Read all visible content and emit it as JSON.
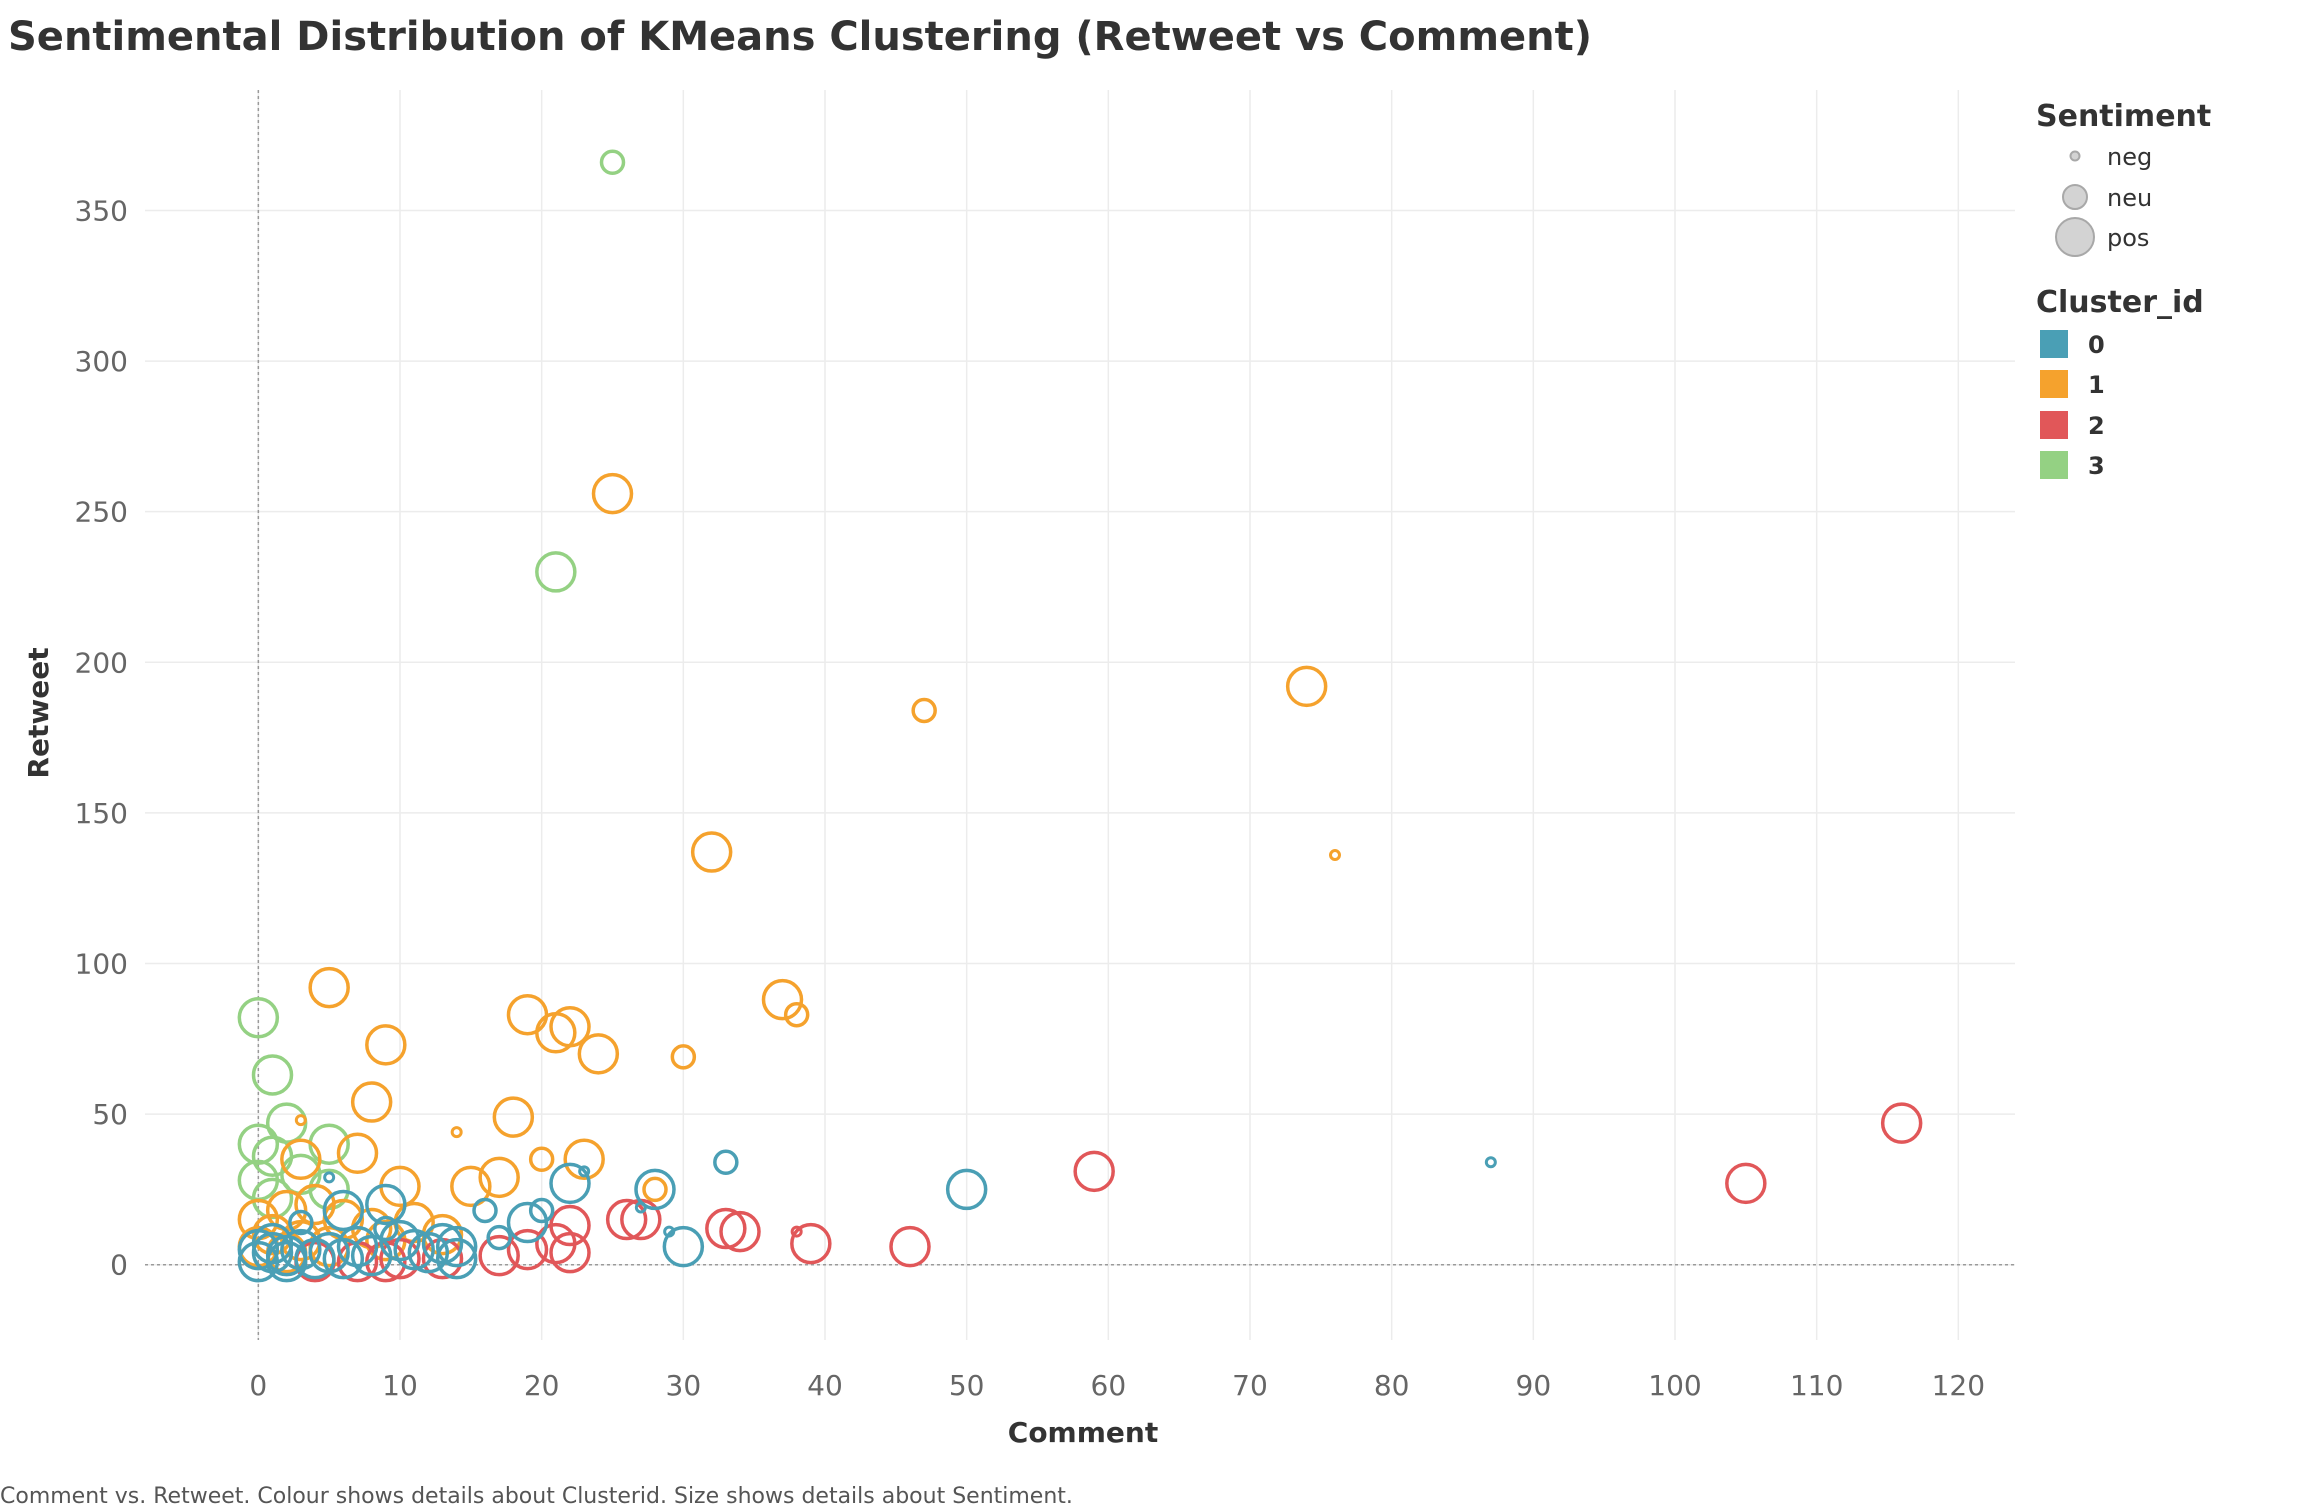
{
  "caption": "Comment vs. Retweet.  Colour shows details about Clusterid.  Size shows details about Sentiment.",
  "chart_data": {
    "type": "scatter",
    "title": "Sentimental Distribution of KMeans Clustering (Retweet vs Comment)",
    "xlabel": "Comment",
    "ylabel": "Retweet",
    "xlim": [
      -8,
      124
    ],
    "ylim": [
      -25,
      390
    ],
    "xticks": [
      0,
      10,
      20,
      30,
      40,
      50,
      60,
      70,
      80,
      90,
      100,
      110,
      120
    ],
    "yticks": [
      0,
      50,
      100,
      150,
      200,
      250,
      300,
      350
    ],
    "grid": true,
    "legend_position": "right",
    "size_legend": {
      "title": "Sentiment",
      "items": [
        {
          "label": "neg",
          "size": "small"
        },
        {
          "label": "neu",
          "size": "medium"
        },
        {
          "label": "pos",
          "size": "large"
        }
      ]
    },
    "color_legend": {
      "title": "Cluster_id",
      "items": [
        {
          "label": "0",
          "color": "#4a9fb5"
        },
        {
          "label": "1",
          "color": "#f5a22d"
        },
        {
          "label": "2",
          "color": "#e15759"
        },
        {
          "label": "3",
          "color": "#94d183"
        }
      ]
    },
    "points": [
      {
        "x": 25,
        "y": 366,
        "cluster": "3",
        "sentiment": "neu"
      },
      {
        "x": 21,
        "y": 230,
        "cluster": "3",
        "sentiment": "pos"
      },
      {
        "x": 0,
        "y": 82,
        "cluster": "3",
        "sentiment": "pos"
      },
      {
        "x": 1,
        "y": 63,
        "cluster": "3",
        "sentiment": "pos"
      },
      {
        "x": 2,
        "y": 47,
        "cluster": "3",
        "sentiment": "pos"
      },
      {
        "x": 0,
        "y": 40,
        "cluster": "3",
        "sentiment": "pos"
      },
      {
        "x": 1,
        "y": 36,
        "cluster": "3",
        "sentiment": "pos"
      },
      {
        "x": 5,
        "y": 40,
        "cluster": "3",
        "sentiment": "pos"
      },
      {
        "x": 0,
        "y": 28,
        "cluster": "3",
        "sentiment": "pos"
      },
      {
        "x": 3,
        "y": 30,
        "cluster": "3",
        "sentiment": "pos"
      },
      {
        "x": 1,
        "y": 22,
        "cluster": "3",
        "sentiment": "pos"
      },
      {
        "x": 5,
        "y": 25,
        "cluster": "3",
        "sentiment": "pos"
      },
      {
        "x": 25,
        "y": 256,
        "cluster": "1",
        "sentiment": "pos"
      },
      {
        "x": 74,
        "y": 192,
        "cluster": "1",
        "sentiment": "pos"
      },
      {
        "x": 47,
        "y": 184,
        "cluster": "1",
        "sentiment": "neu"
      },
      {
        "x": 32,
        "y": 137,
        "cluster": "1",
        "sentiment": "pos"
      },
      {
        "x": 76,
        "y": 136,
        "cluster": "1",
        "sentiment": "neg"
      },
      {
        "x": 5,
        "y": 92,
        "cluster": "1",
        "sentiment": "pos"
      },
      {
        "x": 37,
        "y": 88,
        "cluster": "1",
        "sentiment": "pos"
      },
      {
        "x": 19,
        "y": 83,
        "cluster": "1",
        "sentiment": "pos"
      },
      {
        "x": 38,
        "y": 83,
        "cluster": "1",
        "sentiment": "neu"
      },
      {
        "x": 22,
        "y": 79,
        "cluster": "1",
        "sentiment": "pos"
      },
      {
        "x": 21,
        "y": 77,
        "cluster": "1",
        "sentiment": "pos"
      },
      {
        "x": 9,
        "y": 73,
        "cluster": "1",
        "sentiment": "pos"
      },
      {
        "x": 24,
        "y": 70,
        "cluster": "1",
        "sentiment": "pos"
      },
      {
        "x": 30,
        "y": 69,
        "cluster": "1",
        "sentiment": "neu"
      },
      {
        "x": 8,
        "y": 54,
        "cluster": "1",
        "sentiment": "pos"
      },
      {
        "x": 18,
        "y": 49,
        "cluster": "1",
        "sentiment": "pos"
      },
      {
        "x": 14,
        "y": 44,
        "cluster": "1",
        "sentiment": "neg"
      },
      {
        "x": 3,
        "y": 48,
        "cluster": "1",
        "sentiment": "neg"
      },
      {
        "x": 7,
        "y": 37,
        "cluster": "1",
        "sentiment": "pos"
      },
      {
        "x": 3,
        "y": 35,
        "cluster": "1",
        "sentiment": "pos"
      },
      {
        "x": 20,
        "y": 35,
        "cluster": "1",
        "sentiment": "neu"
      },
      {
        "x": 23,
        "y": 35,
        "cluster": "1",
        "sentiment": "pos"
      },
      {
        "x": 17,
        "y": 29,
        "cluster": "1",
        "sentiment": "pos"
      },
      {
        "x": 10,
        "y": 26,
        "cluster": "1",
        "sentiment": "pos"
      },
      {
        "x": 15,
        "y": 26,
        "cluster": "1",
        "sentiment": "pos"
      },
      {
        "x": 28,
        "y": 25,
        "cluster": "1",
        "sentiment": "neu"
      },
      {
        "x": 2,
        "y": 18,
        "cluster": "1",
        "sentiment": "pos"
      },
      {
        "x": 0,
        "y": 15,
        "cluster": "1",
        "sentiment": "pos"
      },
      {
        "x": 4,
        "y": 20,
        "cluster": "1",
        "sentiment": "pos"
      },
      {
        "x": 6,
        "y": 15,
        "cluster": "1",
        "sentiment": "pos"
      },
      {
        "x": 1,
        "y": 10,
        "cluster": "1",
        "sentiment": "pos"
      },
      {
        "x": 3,
        "y": 8,
        "cluster": "1",
        "sentiment": "pos"
      },
      {
        "x": 8,
        "y": 12,
        "cluster": "1",
        "sentiment": "pos"
      },
      {
        "x": 11,
        "y": 14,
        "cluster": "1",
        "sentiment": "pos"
      },
      {
        "x": 13,
        "y": 10,
        "cluster": "1",
        "sentiment": "pos"
      },
      {
        "x": 0,
        "y": 6,
        "cluster": "1",
        "sentiment": "pos"
      },
      {
        "x": 5,
        "y": 6,
        "cluster": "1",
        "sentiment": "pos"
      },
      {
        "x": 9,
        "y": 8,
        "cluster": "1",
        "sentiment": "pos"
      },
      {
        "x": 2,
        "y": 4,
        "cluster": "1",
        "sentiment": "pos"
      },
      {
        "x": 116,
        "y": 47,
        "cluster": "2",
        "sentiment": "pos"
      },
      {
        "x": 59,
        "y": 31,
        "cluster": "2",
        "sentiment": "pos"
      },
      {
        "x": 105,
        "y": 27,
        "cluster": "2",
        "sentiment": "pos"
      },
      {
        "x": 26,
        "y": 15,
        "cluster": "2",
        "sentiment": "pos"
      },
      {
        "x": 27,
        "y": 15,
        "cluster": "2",
        "sentiment": "pos"
      },
      {
        "x": 33,
        "y": 12,
        "cluster": "2",
        "sentiment": "pos"
      },
      {
        "x": 34,
        "y": 11,
        "cluster": "2",
        "sentiment": "pos"
      },
      {
        "x": 38,
        "y": 11,
        "cluster": "2",
        "sentiment": "neg"
      },
      {
        "x": 22,
        "y": 13,
        "cluster": "2",
        "sentiment": "pos"
      },
      {
        "x": 39,
        "y": 7,
        "cluster": "2",
        "sentiment": "pos"
      },
      {
        "x": 46,
        "y": 6,
        "cluster": "2",
        "sentiment": "pos"
      },
      {
        "x": 21,
        "y": 7,
        "cluster": "2",
        "sentiment": "pos"
      },
      {
        "x": 19,
        "y": 5,
        "cluster": "2",
        "sentiment": "pos"
      },
      {
        "x": 22,
        "y": 4,
        "cluster": "2",
        "sentiment": "pos"
      },
      {
        "x": 17,
        "y": 3,
        "cluster": "2",
        "sentiment": "pos"
      },
      {
        "x": 13,
        "y": 2,
        "cluster": "2",
        "sentiment": "pos"
      },
      {
        "x": 9,
        "y": 1,
        "cluster": "2",
        "sentiment": "pos"
      },
      {
        "x": 10,
        "y": 2,
        "cluster": "2",
        "sentiment": "pos"
      },
      {
        "x": 7,
        "y": 1,
        "cluster": "2",
        "sentiment": "pos"
      },
      {
        "x": 4,
        "y": 1,
        "cluster": "2",
        "sentiment": "pos"
      },
      {
        "x": 87,
        "y": 34,
        "cluster": "0",
        "sentiment": "neg"
      },
      {
        "x": 33,
        "y": 34,
        "cluster": "0",
        "sentiment": "neu"
      },
      {
        "x": 50,
        "y": 25,
        "cluster": "0",
        "sentiment": "pos"
      },
      {
        "x": 28,
        "y": 25,
        "cluster": "0",
        "sentiment": "pos"
      },
      {
        "x": 22,
        "y": 27,
        "cluster": "0",
        "sentiment": "pos"
      },
      {
        "x": 23,
        "y": 31,
        "cluster": "0",
        "sentiment": "neg"
      },
      {
        "x": 9,
        "y": 20,
        "cluster": "0",
        "sentiment": "pos"
      },
      {
        "x": 6,
        "y": 18,
        "cluster": "0",
        "sentiment": "pos"
      },
      {
        "x": 16,
        "y": 18,
        "cluster": "0",
        "sentiment": "neu"
      },
      {
        "x": 20,
        "y": 18,
        "cluster": "0",
        "sentiment": "neu"
      },
      {
        "x": 19,
        "y": 14,
        "cluster": "0",
        "sentiment": "pos"
      },
      {
        "x": 27,
        "y": 19,
        "cluster": "0",
        "sentiment": "neg"
      },
      {
        "x": 29,
        "y": 11,
        "cluster": "0",
        "sentiment": "neg"
      },
      {
        "x": 30,
        "y": 6,
        "cluster": "0",
        "sentiment": "pos"
      },
      {
        "x": 17,
        "y": 9,
        "cluster": "0",
        "sentiment": "neu"
      },
      {
        "x": 14,
        "y": 6,
        "cluster": "0",
        "sentiment": "pos"
      },
      {
        "x": 14,
        "y": 2,
        "cluster": "0",
        "sentiment": "pos"
      },
      {
        "x": 12,
        "y": 4,
        "cluster": "0",
        "sentiment": "pos"
      },
      {
        "x": 13,
        "y": 7,
        "cluster": "0",
        "sentiment": "pos"
      },
      {
        "x": 11,
        "y": 5,
        "cluster": "0",
        "sentiment": "pos"
      },
      {
        "x": 10,
        "y": 8,
        "cluster": "0",
        "sentiment": "pos"
      },
      {
        "x": 8,
        "y": 3,
        "cluster": "0",
        "sentiment": "pos"
      },
      {
        "x": 7,
        "y": 6,
        "cluster": "0",
        "sentiment": "pos"
      },
      {
        "x": 6,
        "y": 2,
        "cluster": "0",
        "sentiment": "pos"
      },
      {
        "x": 5,
        "y": 4,
        "cluster": "0",
        "sentiment": "pos"
      },
      {
        "x": 4,
        "y": 2,
        "cluster": "0",
        "sentiment": "pos"
      },
      {
        "x": 3,
        "y": 5,
        "cluster": "0",
        "sentiment": "pos"
      },
      {
        "x": 3,
        "y": 14,
        "cluster": "0",
        "sentiment": "neu"
      },
      {
        "x": 2,
        "y": 1,
        "cluster": "0",
        "sentiment": "pos"
      },
      {
        "x": 1,
        "y": 4,
        "cluster": "0",
        "sentiment": "pos"
      },
      {
        "x": 0,
        "y": 1,
        "cluster": "0",
        "sentiment": "pos"
      },
      {
        "x": 0,
        "y": 5,
        "cluster": "0",
        "sentiment": "pos"
      },
      {
        "x": 1,
        "y": 7,
        "cluster": "0",
        "sentiment": "pos"
      },
      {
        "x": 2,
        "y": 3,
        "cluster": "0",
        "sentiment": "pos"
      },
      {
        "x": 5,
        "y": 29,
        "cluster": "0",
        "sentiment": "neg"
      },
      {
        "x": 9,
        "y": 12,
        "cluster": "0",
        "sentiment": "neu"
      }
    ]
  }
}
